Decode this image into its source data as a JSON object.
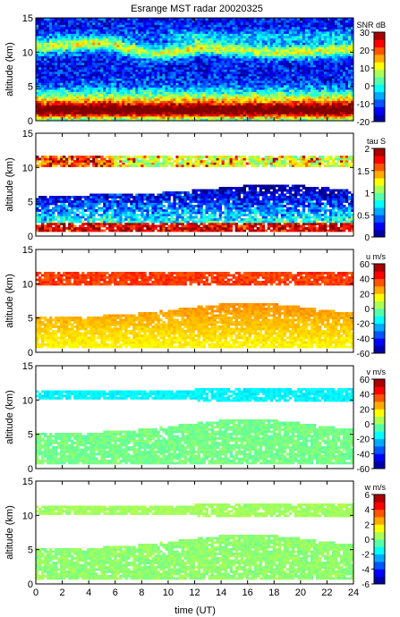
{
  "figure": {
    "title": "Esrange MST radar 20020325",
    "xlabel": "time (UT)"
  },
  "chart_data": [
    {
      "type": "heatmap",
      "title": "Esrange MST radar 20020325",
      "xlabel": "",
      "ylabel": "altitude (km)",
      "xlim": [
        0,
        24
      ],
      "ylim": [
        0,
        15
      ],
      "xticks": [
        "0",
        "2",
        "4",
        "6",
        "8",
        "10",
        "12",
        "14",
        "16",
        "18",
        "20",
        "22",
        "24"
      ],
      "xticks_shown": false,
      "yticks": [
        "0",
        "5",
        "10",
        "15"
      ],
      "colorbar": {
        "label": "SNR dB",
        "min": -20,
        "max": 30,
        "ticks": [
          "-20",
          "-10",
          "0",
          "10",
          "20",
          "30"
        ],
        "colormap": "jet"
      },
      "pattern": "snr",
      "altitude_profile_km": [
        0.5,
        1.5,
        2.5,
        3.5,
        4.5,
        5.5,
        6.5,
        7.5,
        8.5,
        9.5,
        10.5,
        11.5,
        12.5,
        13.5,
        14.5
      ],
      "typical_values": [
        16,
        23,
        17,
        6,
        -2,
        -8,
        -12,
        -14,
        -16,
        -9,
        8,
        5,
        -4,
        -6,
        -6
      ]
    },
    {
      "type": "heatmap",
      "xlabel": "",
      "ylabel": "altitude (km)",
      "xlim": [
        0,
        24
      ],
      "ylim": [
        0,
        15
      ],
      "xticks": [
        "0",
        "2",
        "4",
        "6",
        "8",
        "10",
        "12",
        "14",
        "16",
        "18",
        "20",
        "22",
        "24"
      ],
      "xticks_shown": false,
      "yticks": [
        "0",
        "5",
        "10",
        "15"
      ],
      "colorbar": {
        "label": "tau S",
        "min": 0,
        "max": 2,
        "ticks": [
          "0",
          "0.5",
          "1",
          "1.5",
          "2"
        ],
        "colormap": "jet"
      },
      "pattern": "tau",
      "altitude_profile_km": [
        1.5,
        2.5,
        3.5,
        4.5,
        10.5,
        11.5
      ],
      "typical_values": [
        1.9,
        1.3,
        0.7,
        0.6,
        0.8,
        1.2
      ]
    },
    {
      "type": "heatmap",
      "xlabel": "",
      "ylabel": "altitude (km)",
      "xlim": [
        0,
        24
      ],
      "ylim": [
        0,
        15
      ],
      "xticks": [
        "0",
        "2",
        "4",
        "6",
        "8",
        "10",
        "12",
        "14",
        "16",
        "18",
        "20",
        "22",
        "24"
      ],
      "xticks_shown": false,
      "yticks": [
        "0",
        "5",
        "10",
        "15"
      ],
      "colorbar": {
        "label": "u m/s",
        "min": -60,
        "max": 60,
        "ticks": [
          "-60",
          "-40",
          "-20",
          "0",
          "20",
          "40",
          "60"
        ],
        "colormap": "jet"
      },
      "pattern": "u",
      "altitude_profile_km": [
        1.5,
        3.5,
        5.5,
        10.5,
        11.5
      ],
      "typical_values": [
        12,
        20,
        22,
        38,
        40
      ]
    },
    {
      "type": "heatmap",
      "xlabel": "",
      "ylabel": "altitude (km)",
      "xlim": [
        0,
        24
      ],
      "ylim": [
        0,
        15
      ],
      "xticks": [
        "0",
        "2",
        "4",
        "6",
        "8",
        "10",
        "12",
        "14",
        "16",
        "18",
        "20",
        "22",
        "24"
      ],
      "xticks_shown": false,
      "yticks": [
        "0",
        "5",
        "10",
        "15"
      ],
      "colorbar": {
        "label": "v m/s",
        "min": -60,
        "max": 60,
        "ticks": [
          "-60",
          "-40",
          "-20",
          "0",
          "20",
          "40",
          "60"
        ],
        "colormap": "jet"
      },
      "pattern": "v",
      "altitude_profile_km": [
        1.5,
        3.5,
        5.5,
        10.5,
        11.5
      ],
      "typical_values": [
        2,
        -2,
        0,
        -18,
        -14
      ]
    },
    {
      "type": "heatmap",
      "xlabel": "time (UT)",
      "ylabel": "altitude (km)",
      "xlim": [
        0,
        24
      ],
      "ylim": [
        0,
        15
      ],
      "xticks": [
        "0",
        "2",
        "4",
        "6",
        "8",
        "10",
        "12",
        "14",
        "16",
        "18",
        "20",
        "22",
        "24"
      ],
      "xticks_shown": true,
      "yticks": [
        "0",
        "5",
        "10",
        "15"
      ],
      "colorbar": {
        "label": "w m/s",
        "min": -6,
        "max": 6,
        "ticks": [
          "-6",
          "-4",
          "-2",
          "0",
          "2",
          "4",
          "6"
        ],
        "colormap": "jet"
      },
      "pattern": "w",
      "altitude_profile_km": [
        1.5,
        3.5,
        5.5,
        10.5,
        11.5
      ],
      "typical_values": [
        0.3,
        0.2,
        0.1,
        0.4,
        0.3
      ]
    }
  ]
}
